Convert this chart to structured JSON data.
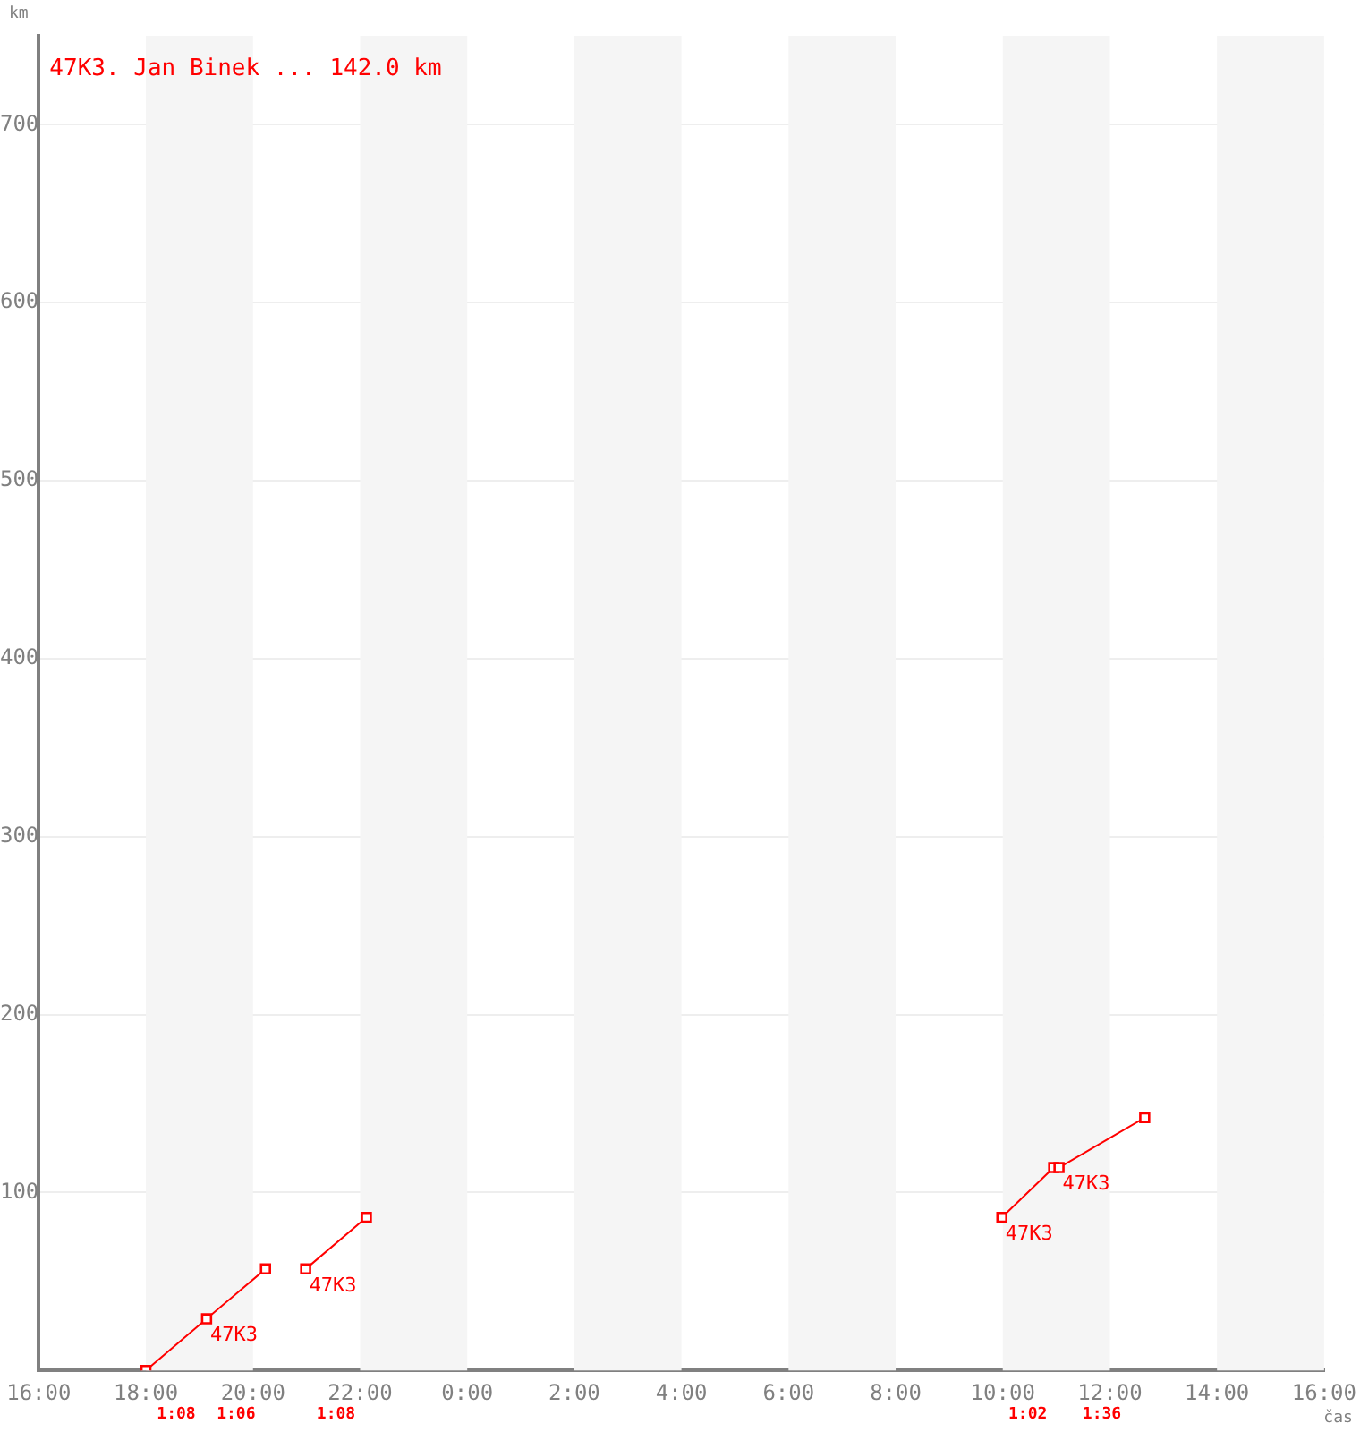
{
  "chart_data": {
    "type": "line",
    "xlabel": "čas",
    "ylabel": "km",
    "ylim": [
      0,
      750
    ],
    "xlim": [
      "--01-01T16:00",
      "--01-02T16:00"
    ],
    "xticks": [
      {
        "value": "--01-01T16:00",
        "label": "16:00"
      },
      {
        "value": "--01-01T18:00",
        "label": "18:00"
      },
      {
        "value": "--01-01T20:00",
        "label": "20:00"
      },
      {
        "value": "--01-01T22:00",
        "label": "22:00"
      },
      {
        "value": "--01-02T00:00",
        "label": "0:00"
      },
      {
        "value": "--01-02T02:00",
        "label": "2:00"
      },
      {
        "value": "--01-02T04:00",
        "label": "4:00"
      },
      {
        "value": "--01-02T06:00",
        "label": "6:00"
      },
      {
        "value": "--01-02T08:00",
        "label": "8:00"
      },
      {
        "value": "--01-02T10:00",
        "label": "10:00"
      },
      {
        "value": "--01-02T12:00",
        "label": "12:00"
      },
      {
        "value": "--01-02T14:00",
        "label": "14:00"
      },
      {
        "value": "--01-02T16:00",
        "label": "16:00"
      }
    ],
    "yticks": [
      100,
      200,
      300,
      400,
      500,
      600,
      700
    ],
    "grid": "y",
    "marker": "square",
    "line_style": "solid",
    "legend": "top left",
    "series": [
      {
        "name": "47K3. Jan Binek ... 142.0 km",
        "color": "#ff0000",
        "x": [
          "--01-01T18:00",
          "--01-01T19:08",
          "--01-01T20:14",
          "--01-01T20:36",
          "--01-01T20:59",
          "--01-01T22:07",
          "--01-02T04:00",
          "--01-02T09:59",
          "--01-02T10:57",
          "--01-02T11:03",
          "--01-02T12:39"
        ],
        "values": [
          0,
          29,
          57,
          null,
          57,
          86,
          null,
          86,
          114,
          114,
          142
        ]
      }
    ],
    "bands": [
      {
        "axis": "x",
        "from": "--01-01T18:00",
        "to": "--01-01T20:00",
        "color": "#f5f5f5"
      },
      {
        "axis": "x",
        "from": "--01-01T22:00",
        "to": "--01-02T00:00",
        "color": "#f5f5f5"
      },
      {
        "axis": "x",
        "from": "--01-02T02:00",
        "to": "--01-02T04:00",
        "color": "#f5f5f5"
      },
      {
        "axis": "x",
        "from": "--01-02T06:00",
        "to": "--01-02T08:00",
        "color": "#f5f5f5"
      },
      {
        "axis": "x",
        "from": "--01-02T10:00",
        "to": "--01-02T12:00",
        "color": "#f5f5f5"
      },
      {
        "axis": "x",
        "from": "--01-02T14:00",
        "to": "--01-02T16:00",
        "color": "#f5f5f5"
      }
    ],
    "annotations": [
      {
        "text": "47K3",
        "x": "--01-01T19:08",
        "y": 29
      },
      {
        "text": "47K3",
        "x": "--01-01T20:59",
        "y": 57
      },
      {
        "text": "47K3",
        "x": "--01-02T09:59",
        "y": 86
      },
      {
        "text": "47K3",
        "x": "--01-02T11:03",
        "y": 114
      },
      "1:08",
      "1:06",
      "1:08",
      "1:02",
      "1:36"
    ]
  }
}
